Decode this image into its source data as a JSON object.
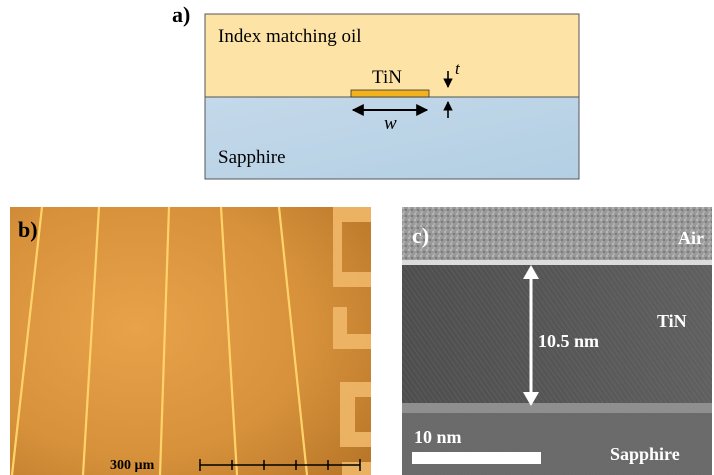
{
  "panel_a": {
    "label": "a)",
    "oil_label": "Index matching oil",
    "tin_label": "TiN",
    "thickness_symbol": "t",
    "width_symbol": "w",
    "substrate_label": "Sapphire",
    "colors": {
      "oil": "#fde4a6",
      "substrate": "#bcd6e8",
      "film": "#f2b21d"
    }
  },
  "panel_b": {
    "label": "b)",
    "scale_bar_label": "300 µm"
  },
  "panel_c": {
    "label": "c)",
    "air_label": "Air",
    "tin_label": "TiN",
    "thickness_label": "10.5 nm",
    "substrate_label": "Sapphire",
    "scale_bar_label": "10 nm"
  }
}
